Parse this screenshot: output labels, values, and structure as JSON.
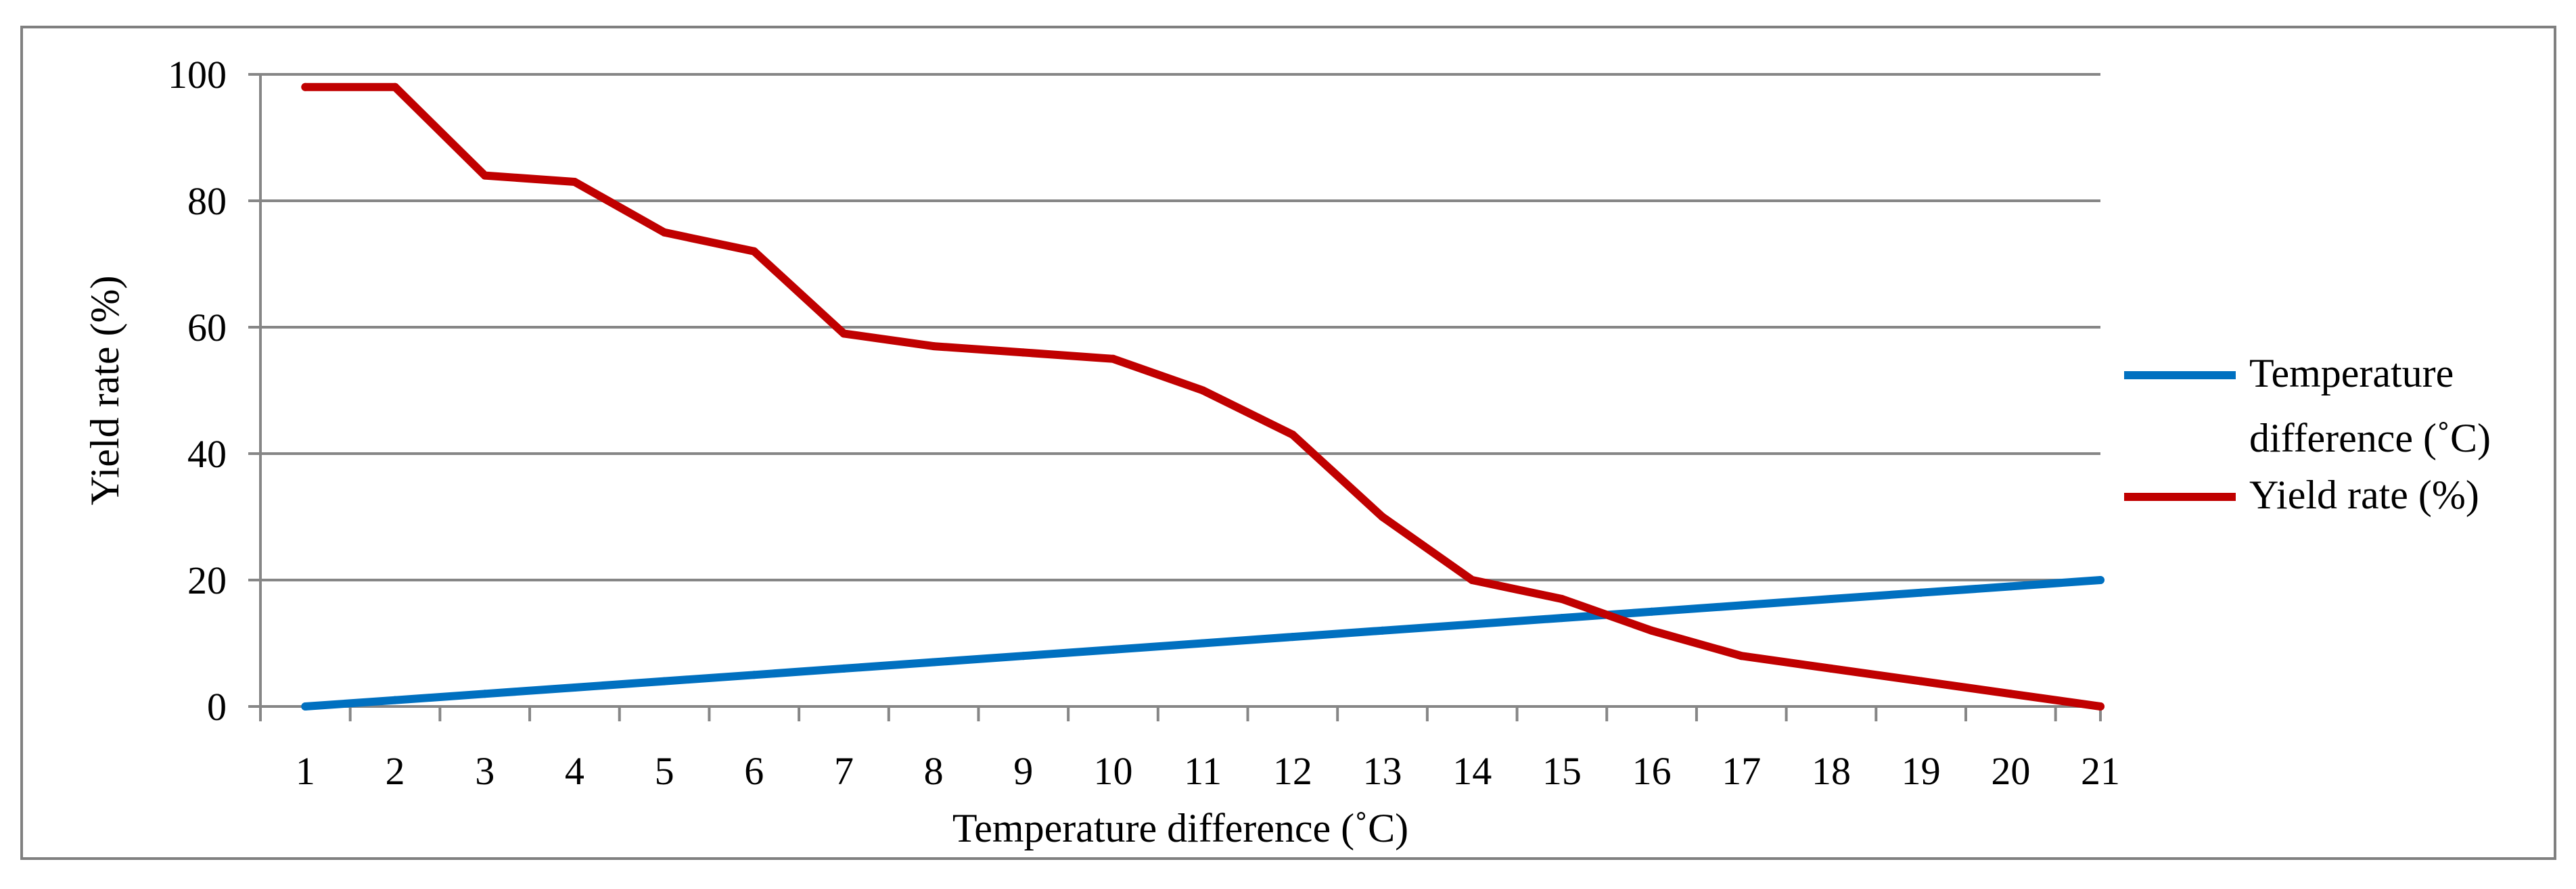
{
  "chart_data": {
    "type": "line",
    "title": "",
    "xlabel": "Temperature difference (˚C)",
    "ylabel": "Yield rate (%)",
    "categories": [
      "1",
      "2",
      "3",
      "4",
      "5",
      "6",
      "7",
      "8",
      "9",
      "10",
      "11",
      "12",
      "13",
      "14",
      "15",
      "16",
      "17",
      "18",
      "19",
      "20",
      "21"
    ],
    "ylim": [
      0,
      100
    ],
    "yticks": [
      0,
      20,
      40,
      60,
      80,
      100
    ],
    "grid": true,
    "legend_position": "right",
    "series": [
      {
        "name": "Temperature difference (˚C)",
        "legend_lines": [
          "Temperature",
          "difference (˚C)"
        ],
        "color": "#0070C0",
        "values": [
          0,
          1,
          2,
          3,
          4,
          5,
          6,
          7,
          8,
          9,
          10,
          11,
          12,
          13,
          14,
          15,
          16,
          17,
          18,
          19,
          20
        ]
      },
      {
        "name": "Yield rate (%)",
        "legend_lines": [
          "Yield rate (%)"
        ],
        "color": "#C00000",
        "values": [
          98,
          98,
          84,
          83,
          75,
          72,
          59,
          57,
          56,
          55,
          50,
          43,
          30,
          20,
          17,
          12,
          8,
          6,
          4,
          2,
          0
        ]
      }
    ]
  }
}
